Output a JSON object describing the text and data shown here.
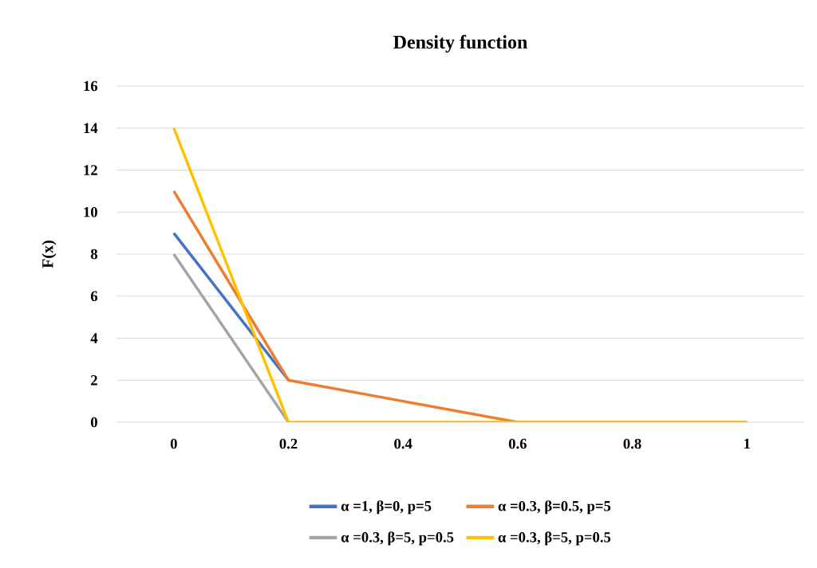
{
  "chart_data": {
    "type": "line",
    "title": "Density function",
    "ylabel": "F(x)",
    "categories": [
      "0",
      "0.2",
      "0.4",
      "0.6",
      "0.8",
      "1"
    ],
    "series": [
      {
        "name": "α =1, β=0, p=5",
        "color": "#4472c4",
        "values": [
          9,
          2,
          null,
          null,
          null,
          null
        ]
      },
      {
        "name": "α =0.3, β=0.5, p=5",
        "color": "#ed7d31",
        "values": [
          11,
          2,
          1,
          0,
          0,
          0
        ]
      },
      {
        "name": "α =0.3, β=5, p=0.5",
        "color": "#a5a5a5",
        "values": [
          8,
          0,
          null,
          null,
          null,
          null
        ]
      },
      {
        "name": "α =0.3, β=5, p=0.5",
        "color": "#ffc000",
        "values": [
          14,
          0,
          0,
          0,
          0,
          0
        ]
      }
    ],
    "ylim": [
      0,
      16
    ],
    "yticks": [
      0,
      2,
      4,
      6,
      8,
      10,
      12,
      14,
      16
    ],
    "grid": "y",
    "legend": "bottom",
    "marker": "none",
    "line_style": "solid"
  }
}
